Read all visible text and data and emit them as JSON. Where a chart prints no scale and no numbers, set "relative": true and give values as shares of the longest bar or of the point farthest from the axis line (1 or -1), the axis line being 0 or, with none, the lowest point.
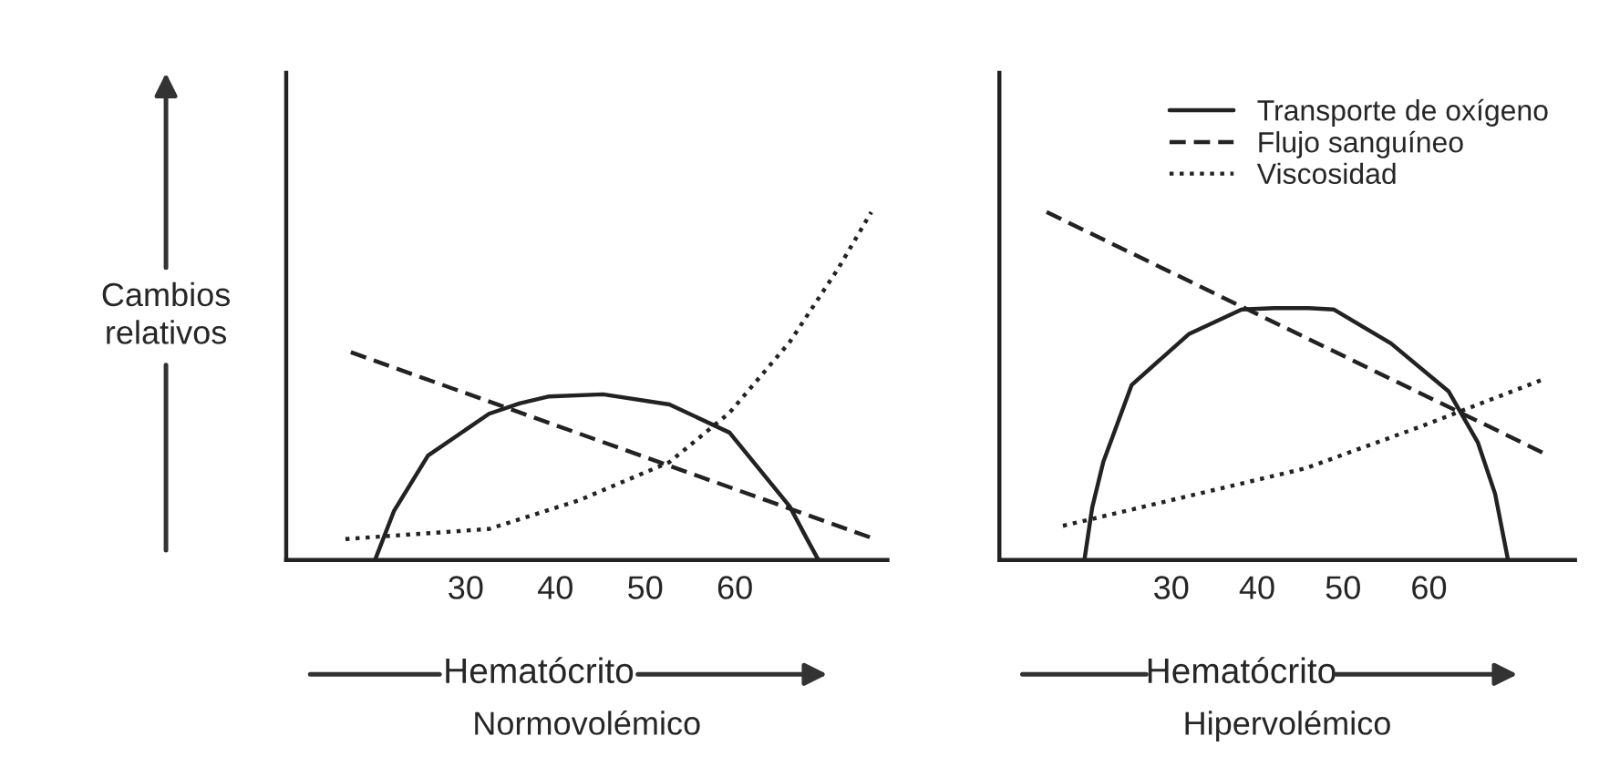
{
  "chart_data": [
    {
      "type": "line",
      "relative": true,
      "title": "Normovolémico",
      "xlabel": "Hematócrito",
      "ylabel": "Cambios relativos",
      "xlim": [
        10,
        77
      ],
      "xticks": [
        30,
        40,
        50,
        60
      ],
      "tick_labels": "x",
      "legend": false,
      "grid": false,
      "series": [
        {
          "color": "#222222",
          "line_style": "solid",
          "x": [
            19.9,
            22,
            25.8,
            32.6,
            36,
            39.3,
            45.3,
            52.7,
            59.4,
            66.1,
            68.1,
            69.3
          ],
          "values": [
            0,
            0.14,
            0.3,
            0.42,
            0.45,
            0.47,
            0.476,
            0.447,
            0.366,
            0.154,
            0.057,
            0
          ]
        },
        {
          "color": "#222222",
          "line_style": "dashed",
          "x": [
            17.2,
            75.6
          ],
          "values": [
            0.597,
            0.06
          ]
        },
        {
          "color": "#222222",
          "line_style": "dotted",
          "x": [
            16.6,
            32.6,
            42.6,
            52.7,
            59.4,
            66.1,
            71.5,
            75.2
          ],
          "values": [
            0.06,
            0.089,
            0.171,
            0.281,
            0.423,
            0.626,
            0.837,
            1.0
          ]
        }
      ]
    },
    {
      "type": "line",
      "relative": true,
      "title": "Hipervolémico",
      "xlabel": "Hematócrito",
      "xlim": [
        10,
        77
      ],
      "xticks": [
        30,
        40,
        50,
        60
      ],
      "tick_labels": "x",
      "legend": "top right",
      "grid": false,
      "series": [
        {
          "name": "Transporte de oxígeno",
          "color": "#222222",
          "line_style": "solid",
          "x": [
            19.9,
            20.8,
            22.1,
            25.4,
            32.1,
            38.2,
            42,
            46,
            48.9,
            55.6,
            62.3,
            65.7,
            67.7,
            69.2
          ],
          "values": [
            0,
            0.15,
            0.282,
            0.503,
            0.65,
            0.72,
            0.724,
            0.724,
            0.72,
            0.622,
            0.484,
            0.337,
            0.19,
            0
          ]
        },
        {
          "name": "Flujo sanguíneo",
          "color": "#222222",
          "line_style": "dashed",
          "x": [
            15.5,
            73.2
          ],
          "values": [
            1.0,
            0.309
          ]
        },
        {
          "name": "Viscosidad",
          "color": "#222222",
          "line_style": "dotted",
          "x": [
            17.4,
            45.6,
            59.0,
            73.0
          ],
          "values": [
            0.098,
            0.263,
            0.383,
            0.516
          ]
        }
      ]
    }
  ]
}
